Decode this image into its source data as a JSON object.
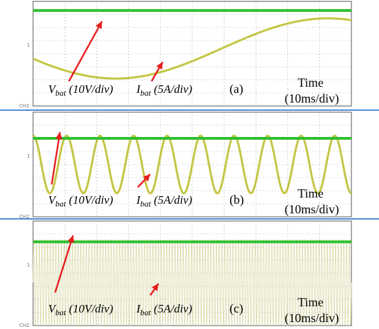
{
  "figure": {
    "panels": [
      {
        "label": "(a)",
        "v_label": {
          "main": "V",
          "sub": "bat",
          "rest": " (10V/div)"
        },
        "i_label": {
          "main": "I",
          "sub": "bat",
          "rest": " (5A/div)"
        },
        "time_label_1": "Time",
        "time_label_2": "(10ms/div)",
        "ch_marker_1": "1",
        "ch_marker_2": "CH2"
      },
      {
        "label": "(b)",
        "v_label": {
          "main": "V",
          "sub": "bat",
          "rest": " (10V/div)"
        },
        "i_label": {
          "main": "I",
          "sub": "bat",
          "rest": " (5A/div)"
        },
        "time_label_1": "Time",
        "time_label_2": "(10ms/div)",
        "ch_marker_1": "1",
        "ch_marker_2": "CH2"
      },
      {
        "label": "(c)",
        "v_label": {
          "main": "V",
          "sub": "bat",
          "rest": " (10V/div)"
        },
        "i_label": {
          "main": "I",
          "sub": "bat",
          "rest": " (5A/div)"
        },
        "time_label_1": "Time",
        "time_label_2": "(10ms/div)",
        "ch_marker_1": "1",
        "ch_marker_2": "CH2"
      }
    ],
    "colors": {
      "voltage_trace": "#2fbf2f",
      "current_trace": "#c8c83c",
      "current_dense": "#d9d9a8",
      "arrow": "#e81c1c",
      "separator": "#4a8fd0"
    }
  },
  "chart_data": [
    {
      "type": "line",
      "panel": "(a)",
      "x_unit": "ms",
      "x_range": [
        0,
        100
      ],
      "series": [
        {
          "name": "Vbat",
          "kind": "dc",
          "level_div": 3.3
        },
        {
          "name": "Ibat",
          "kind": "sine",
          "periods_in_window": 0.75,
          "amplitude_div": 2.3,
          "offset_div": 0.4,
          "phase_deg": 200
        }
      ]
    },
    {
      "type": "line",
      "panel": "(b)",
      "x_unit": "ms",
      "x_range": [
        0,
        100
      ],
      "series": [
        {
          "name": "Vbat",
          "kind": "dc",
          "level_div": 2.0
        },
        {
          "name": "Ibat",
          "kind": "sine",
          "periods_in_window": 9.5,
          "amplitude_div": 2.2,
          "offset_div": 0.0,
          "phase_deg": 90
        }
      ]
    },
    {
      "type": "line",
      "panel": "(c)",
      "x_unit": "ms",
      "x_range": [
        0,
        100
      ],
      "series": [
        {
          "name": "Vbat",
          "kind": "dc",
          "level_div": 2.4
        },
        {
          "name": "Ibat",
          "kind": "sine",
          "periods_in_window": 115,
          "amplitude_div": 3.3,
          "offset_div": -0.7,
          "phase_deg": 0
        }
      ]
    }
  ]
}
